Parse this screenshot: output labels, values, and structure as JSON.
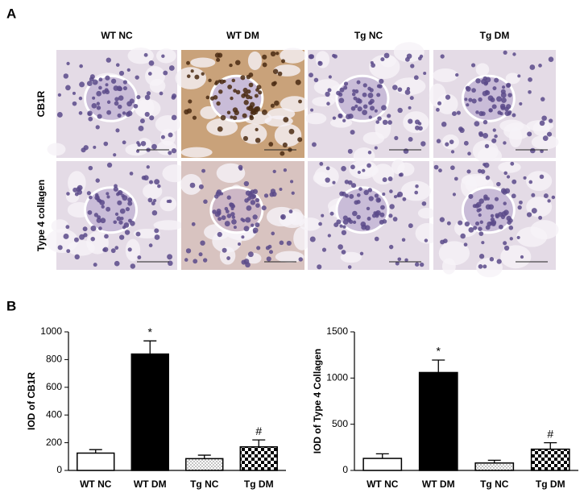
{
  "figure": {
    "panel_labels": [
      "A",
      "B"
    ],
    "micrographs": {
      "columns": [
        "WT NC",
        "WT DM",
        "Tg NC",
        "Tg DM"
      ],
      "rows": [
        "CB1R",
        "Type 4 collagen"
      ]
    }
  },
  "chart_data": [
    {
      "type": "bar",
      "ylabel": "IOD of CB1R",
      "categories": [
        "WT NC",
        "WT DM",
        "Tg NC",
        "Tg DM"
      ],
      "values": [
        125,
        840,
        85,
        170
      ],
      "errors": [
        25,
        95,
        25,
        50
      ],
      "bar_labels": [
        null,
        "*",
        null,
        "#"
      ],
      "fills": [
        "white",
        "black",
        "dots",
        "checker"
      ],
      "ylim": [
        0,
        1000
      ],
      "yticks": [
        0,
        200,
        400,
        600,
        800,
        1000
      ],
      "grid": false
    },
    {
      "type": "bar",
      "ylabel": "IOD of Type 4 Collagen",
      "categories": [
        "WT NC",
        "WT DM",
        "Tg NC",
        "Tg DM"
      ],
      "values": [
        130,
        1060,
        80,
        230
      ],
      "errors": [
        50,
        135,
        30,
        70
      ],
      "bar_labels": [
        null,
        "*",
        null,
        "#"
      ],
      "fills": [
        "white",
        "black",
        "dots",
        "checker"
      ],
      "ylim": [
        0,
        1500
      ],
      "yticks": [
        0,
        500,
        1000,
        1500
      ],
      "grid": false
    }
  ]
}
